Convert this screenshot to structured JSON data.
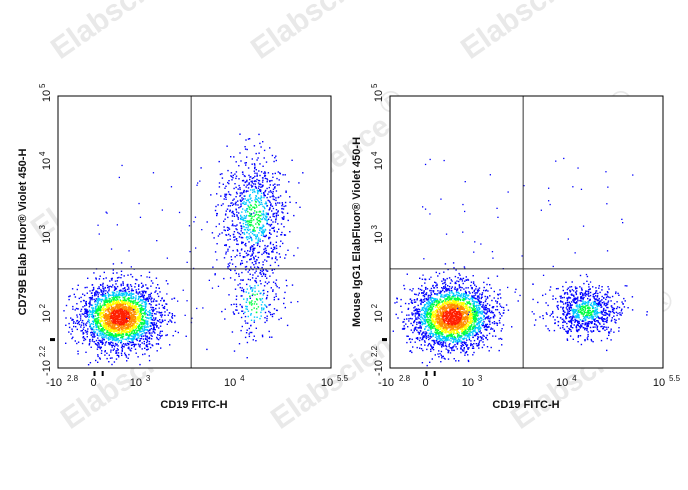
{
  "watermark": "Elabscience",
  "watermark_mark": "®",
  "chart_data": [
    {
      "type": "scatter",
      "xlabel": "CD19 FITC-H",
      "ylabel": "CD79B Elab Fluor® Violet 450-H",
      "x_scale": "biexponential",
      "y_scale": "biexponential",
      "xlim": [
        "-10^2.8",
        "10^5.5"
      ],
      "ylim": [
        "-10^2.2",
        "10^5"
      ],
      "x_ticks": [
        {
          "base": "-10",
          "exp": "2.8"
        },
        {
          "base": "0",
          "exp": ""
        },
        {
          "base": "10",
          "exp": "3"
        },
        {
          "base": "10",
          "exp": "4"
        },
        {
          "base": "10",
          "exp": "5.5"
        }
      ],
      "y_ticks": [
        {
          "base": "-10",
          "exp": "2.2"
        },
        {
          "base": "10",
          "exp": "2"
        },
        {
          "base": "10",
          "exp": "3"
        },
        {
          "base": "10",
          "exp": "4"
        },
        {
          "base": "10",
          "exp": "5"
        }
      ],
      "quadrant_gate": {
        "x": 3500,
        "y": 400
      },
      "populations": [
        {
          "x_center": 300,
          "y_center": 100,
          "relative_density": "high",
          "note_label": ""
        },
        {
          "x_center": 20000,
          "y_center": 2000,
          "relative_density": "medium",
          "note_label": ""
        },
        {
          "x_center": 20000,
          "y_center": 150,
          "relative_density": "low",
          "note_label": ""
        }
      ],
      "grid": false,
      "legend": "none"
    },
    {
      "type": "scatter",
      "xlabel": "CD19 FITC-H",
      "ylabel": "Mouse IgG1 ElabFluor® Violet 450-H",
      "x_scale": "biexponential",
      "y_scale": "biexponential",
      "xlim": [
        "-10^2.8",
        "10^5.5"
      ],
      "ylim": [
        "-10^2.2",
        "10^5"
      ],
      "x_ticks": [
        {
          "base": "-10",
          "exp": "2.8"
        },
        {
          "base": "0",
          "exp": ""
        },
        {
          "base": "10",
          "exp": "3"
        },
        {
          "base": "10",
          "exp": "4"
        },
        {
          "base": "10",
          "exp": "5.5"
        }
      ],
      "y_ticks": [
        {
          "base": "-10",
          "exp": "2.2"
        },
        {
          "base": "10",
          "exp": "2"
        },
        {
          "base": "10",
          "exp": "3"
        },
        {
          "base": "10",
          "exp": "4"
        },
        {
          "base": "10",
          "exp": "5"
        }
      ],
      "quadrant_gate": {
        "x": 3500,
        "y": 400
      },
      "populations": [
        {
          "x_center": 300,
          "y_center": 100,
          "relative_density": "high",
          "note_label": ""
        },
        {
          "x_center": 20000,
          "y_center": 120,
          "relative_density": "medium",
          "note_label": ""
        }
      ],
      "grid": false,
      "legend": "none"
    }
  ],
  "colors": {
    "density_low": "#0000ff",
    "density_mid_low": "#00c8ff",
    "density_mid": "#00ff40",
    "density_mid_high": "#ffff00",
    "density_high": "#ff2000",
    "gate_line": "#333333",
    "axis": "#000000"
  }
}
